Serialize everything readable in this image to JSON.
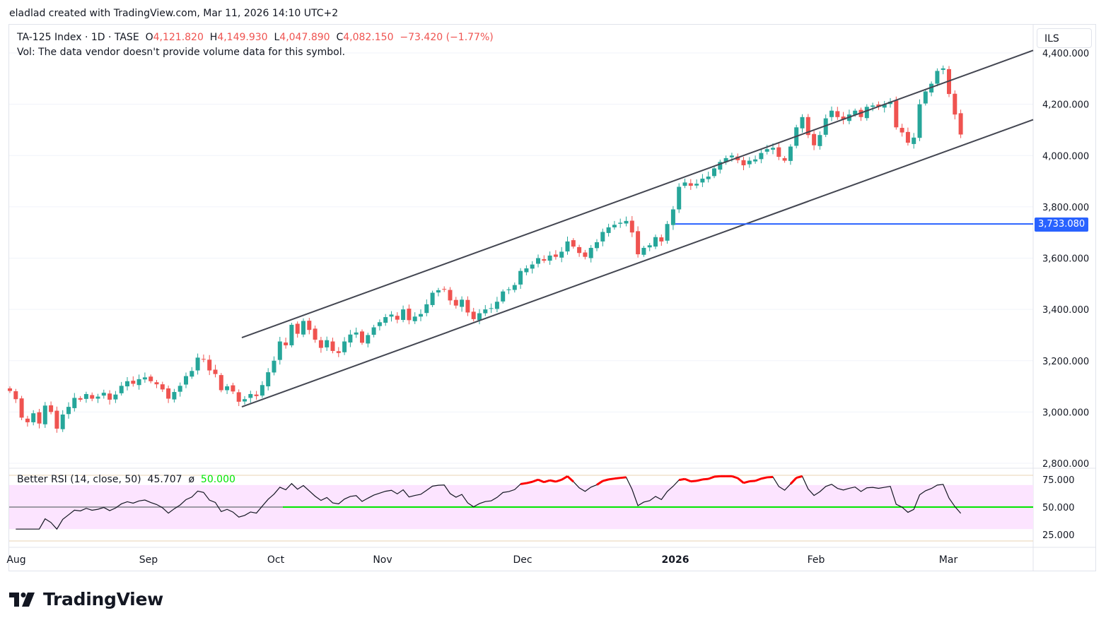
{
  "header": {
    "created_by": "eladlad created with TradingView.com, Mar 11, 2026 14:10 UTC+2"
  },
  "legend": {
    "symbol": "TA-125 Index · 1D · TASE",
    "o_label": "O",
    "o_value": "4,121.820",
    "h_label": "H",
    "h_value": "4,149.930",
    "l_label": "L",
    "l_value": "4,047.890",
    "c_label": "C",
    "c_value": "4,082.150",
    "change": "−73.420 (−1.77%)",
    "vol_note": "Vol: The data vendor doesn't provide volume data for this symbol."
  },
  "currency": "ILS",
  "price_line": {
    "label": "3,733.080",
    "value": 3733.08,
    "color": "#2962ff"
  },
  "rsi_legend": {
    "name": "Better RSI (14, close, 50)",
    "value": "45.707",
    "sep": "ø",
    "mid": "50.000"
  },
  "footer": {
    "brand": "TradingView"
  },
  "chart_data": [
    {
      "type": "candlestick",
      "title": "TA-125 Index · 1D · TASE",
      "ylim": [
        2800,
        4400
      ],
      "y_ticks": [
        "2,800.000",
        "3,000.000",
        "3,200.000",
        "3,400.000",
        "3,600.000",
        "3,800.000",
        "4,000.000",
        "4,200.000",
        "4,400.000"
      ],
      "x_ticks": [
        "Aug",
        "Sep",
        "Oct",
        "Nov",
        "Dec",
        "2026",
        "Feb",
        "Mar"
      ],
      "colors": {
        "up": "#26a69a",
        "down": "#ef5350"
      },
      "closes": [
        3082,
        3050,
        2978,
        2960,
        2995,
        2955,
        3025,
        3000,
        2935,
        2990,
        3020,
        3055,
        3048,
        3070,
        3052,
        3060,
        3075,
        3048,
        3068,
        3102,
        3120,
        3110,
        3128,
        3135,
        3120,
        3108,
        3088,
        3052,
        3078,
        3102,
        3140,
        3160,
        3212,
        3205,
        3162,
        3148,
        3085,
        3100,
        3080,
        3040,
        3050,
        3070,
        3062,
        3105,
        3155,
        3200,
        3275,
        3260,
        3340,
        3305,
        3355,
        3320,
        3282,
        3250,
        3280,
        3238,
        3230,
        3275,
        3302,
        3310,
        3270,
        3300,
        3330,
        3350,
        3370,
        3380,
        3360,
        3400,
        3358,
        3372,
        3382,
        3420,
        3465,
        3475,
        3478,
        3435,
        3415,
        3438,
        3388,
        3362,
        3385,
        3400,
        3405,
        3430,
        3470,
        3478,
        3495,
        3550,
        3560,
        3575,
        3600,
        3590,
        3610,
        3605,
        3625,
        3665,
        3645,
        3620,
        3605,
        3640,
        3662,
        3702,
        3720,
        3730,
        3738,
        3745,
        3700,
        3615,
        3640,
        3650,
        3682,
        3665,
        3733,
        3790,
        3878,
        3895,
        3882,
        3890,
        3910,
        3918,
        3950,
        3975,
        3990,
        4000,
        3982,
        3962,
        3980,
        3985,
        4010,
        4025,
        4030,
        3995,
        3980,
        4035,
        4110,
        4150,
        4080,
        4040,
        4080,
        4145,
        4175,
        4150,
        4140,
        4160,
        4175,
        4150,
        4190,
        4195,
        4190,
        4200,
        4210,
        4110,
        4090,
        4050,
        4070,
        4200,
        4250,
        4280,
        4330,
        4340,
        4240,
        4160,
        4082
      ],
      "channel_lines": [
        {
          "from": [
            "Sep 25, 2025",
            3290
          ],
          "to": [
            "Mar 11, 2026",
            4410
          ]
        },
        {
          "from": [
            "Sep 25, 2025",
            3020
          ],
          "to": [
            "Mar 11, 2026",
            4140
          ]
        }
      ],
      "horizontal_level": 3733.08
    },
    {
      "type": "line",
      "title": "Better RSI (14, close, 50)",
      "ylim": [
        25,
        75
      ],
      "y_ticks": [
        "25.000",
        "50.000",
        "75.000"
      ],
      "band": [
        30,
        70
      ],
      "midline": 50,
      "last_value": 45.707,
      "colors": {
        "line": "#131722",
        "overbought": "#ff0000",
        "midline": "#00e600",
        "band": "#fce4ff"
      }
    }
  ]
}
